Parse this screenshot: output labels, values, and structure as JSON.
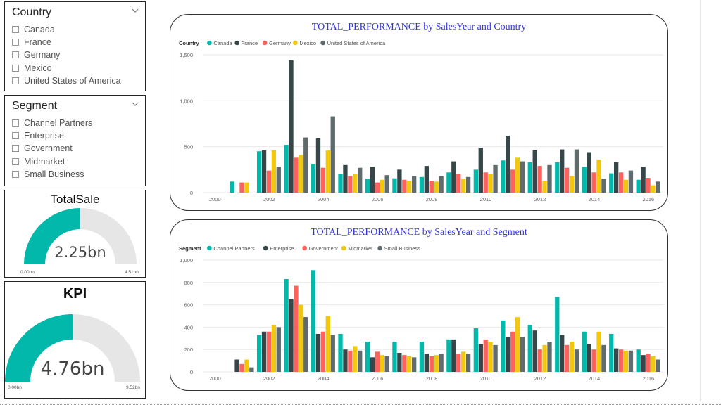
{
  "slicers": [
    {
      "title": "Country",
      "items": [
        "Canada",
        "France",
        "Germany",
        "Mexico",
        "United States of America"
      ]
    },
    {
      "title": "Segment",
      "items": [
        "Channel Partners",
        "Enterprise",
        "Government",
        "Midmarket",
        "Small Business"
      ]
    }
  ],
  "gauges": [
    {
      "title": "TotalSale",
      "value": 2.25,
      "max": 4.51,
      "value_label": "2.25bn",
      "min_label": "0.00bn",
      "max_label": "4.51bn",
      "fill_color": "#01b8aa",
      "track_color": "#e6e6e6"
    },
    {
      "title": "KPI",
      "value": 4.76,
      "max": 9.52,
      "value_label": "4.76bn",
      "min_label": "0.00bn",
      "max_label": "9.52bn",
      "fill_color": "#01b8aa",
      "track_color": "#e6e6e6"
    }
  ],
  "chart_data": [
    {
      "type": "bar",
      "title": "TOTAL_PERFORMANCE by SalesYear and Country",
      "legend_title": "Country",
      "legend_position": "top-left",
      "x": [
        2000,
        2001,
        2002,
        2003,
        2004,
        2005,
        2006,
        2007,
        2008,
        2009,
        2010,
        2011,
        2012,
        2013,
        2014,
        2015,
        2016
      ],
      "x_tick_labels": [
        "2000",
        "2002",
        "2004",
        "2006",
        "2008",
        "2010",
        "2012",
        "2014",
        "2016"
      ],
      "x_tick_values": [
        2000,
        2002,
        2004,
        2006,
        2008,
        2010,
        2012,
        2014,
        2016
      ],
      "ylim": [
        0,
        1500
      ],
      "y_ticks": [
        0,
        500,
        1000,
        1500
      ],
      "y_tick_labels": [
        "0",
        "500",
        "1,000",
        "1,500"
      ],
      "grid": true,
      "series": [
        {
          "name": "Canada",
          "color": "#01b8aa",
          "values": [
            0,
            120,
            450,
            520,
            310,
            200,
            150,
            155,
            170,
            220,
            250,
            350,
            330,
            330,
            280,
            210,
            140
          ]
        },
        {
          "name": "France",
          "color": "#374649",
          "values": [
            0,
            0,
            460,
            1440,
            590,
            300,
            280,
            250,
            290,
            340,
            490,
            620,
            460,
            470,
            440,
            330,
            280
          ]
        },
        {
          "name": "Germany",
          "color": "#fd625e",
          "values": [
            0,
            110,
            240,
            380,
            270,
            180,
            110,
            140,
            130,
            200,
            220,
            250,
            290,
            270,
            220,
            220,
            160
          ]
        },
        {
          "name": "Mexico",
          "color": "#f2c80f",
          "values": [
            0,
            110,
            460,
            410,
            460,
            200,
            140,
            130,
            120,
            150,
            200,
            380,
            130,
            180,
            360,
            140,
            80
          ]
        },
        {
          "name": "United States of America",
          "color": "#5f6b6d",
          "values": [
            0,
            0,
            280,
            600,
            830,
            270,
            190,
            180,
            180,
            170,
            300,
            340,
            300,
            470,
            150,
            240,
            120
          ]
        }
      ]
    },
    {
      "type": "bar",
      "title": "TOTAL_PERFORMANCE by SalesYear and Segment",
      "legend_title": "Segment",
      "legend_position": "top-left",
      "x": [
        2000,
        2001,
        2002,
        2003,
        2004,
        2005,
        2006,
        2007,
        2008,
        2009,
        2010,
        2011,
        2012,
        2013,
        2014,
        2015,
        2016
      ],
      "x_tick_labels": [
        "2000",
        "2002",
        "2004",
        "2006",
        "2008",
        "2010",
        "2012",
        "2014",
        "2016"
      ],
      "x_tick_values": [
        2000,
        2002,
        2004,
        2006,
        2008,
        2010,
        2012,
        2014,
        2016
      ],
      "ylim": [
        0,
        1000
      ],
      "y_ticks": [
        0,
        200,
        400,
        600,
        800,
        1000
      ],
      "y_tick_labels": [
        "0",
        "200",
        "400",
        "600",
        "800",
        "1,000"
      ],
      "grid": true,
      "series": [
        {
          "name": "Channel Partners",
          "color": "#01b8aa",
          "values": [
            0,
            0,
            330,
            830,
            910,
            340,
            270,
            270,
            270,
            290,
            390,
            460,
            420,
            670,
            360,
            340,
            200
          ]
        },
        {
          "name": "Enterprise",
          "color": "#374649",
          "values": [
            0,
            110,
            360,
            650,
            340,
            200,
            130,
            170,
            160,
            290,
            250,
            310,
            370,
            330,
            250,
            210,
            150
          ]
        },
        {
          "name": "Government",
          "color": "#fd625e",
          "values": [
            0,
            70,
            360,
            770,
            360,
            190,
            180,
            150,
            140,
            160,
            290,
            360,
            200,
            240,
            200,
            200,
            160
          ]
        },
        {
          "name": "Midmarket",
          "color": "#f2c80f",
          "values": [
            0,
            110,
            420,
            600,
            500,
            230,
            150,
            140,
            150,
            180,
            270,
            490,
            240,
            270,
            360,
            190,
            140
          ]
        },
        {
          "name": "Small Business",
          "color": "#5f6b6d",
          "values": [
            0,
            40,
            400,
            490,
            330,
            190,
            140,
            130,
            160,
            160,
            240,
            310,
            270,
            200,
            240,
            190,
            110
          ]
        }
      ]
    }
  ]
}
